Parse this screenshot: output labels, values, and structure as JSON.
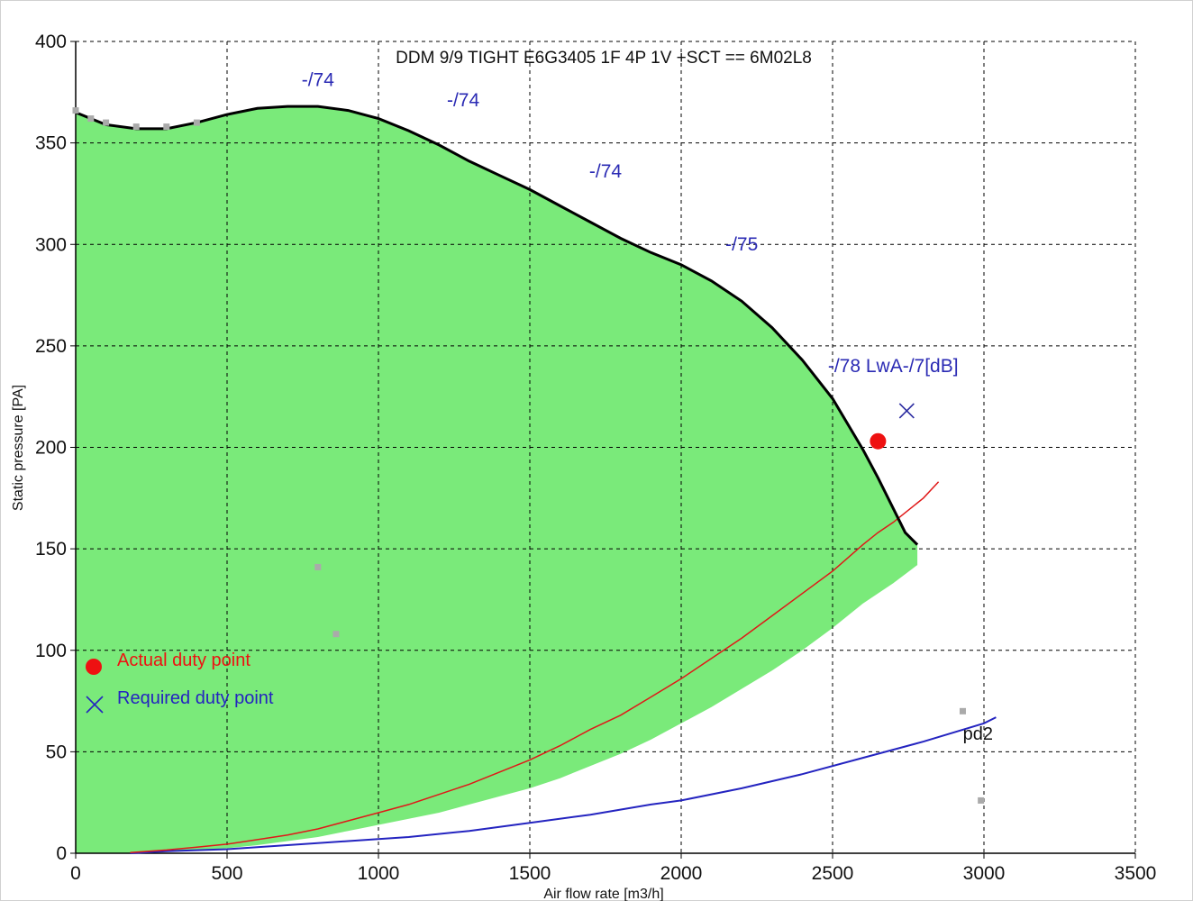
{
  "chart_data": {
    "type": "line",
    "title": "DDM 9/9 TIGHT E6G3405 1F 4P 1V +SCT == 6M02L8",
    "xlabel": "Air flow rate [m3/h]",
    "ylabel": "Static pressure [PA]",
    "xlim": [
      0,
      3500
    ],
    "ylim": [
      0,
      400
    ],
    "x_ticks": [
      "0",
      "500",
      "1000",
      "1500",
      "2000",
      "2500",
      "3000",
      "3500"
    ],
    "y_ticks": [
      "0",
      "50",
      "100",
      "150",
      "200",
      "250",
      "300",
      "350",
      "400"
    ],
    "x_tick_values": [
      0,
      500,
      1000,
      1500,
      2000,
      2500,
      3000,
      3500
    ],
    "y_tick_values": [
      0,
      50,
      100,
      150,
      200,
      250,
      300,
      350,
      400
    ],
    "grid": true,
    "colors": {
      "region": "#7aea7a",
      "fan_curve": "#000000",
      "system_curve": "#e01818",
      "pd_curve": "#2424c0",
      "duty_point": "#ee1111",
      "required_point": "#2a2aa0",
      "sound_label": "#2b2bb4",
      "extrapolated": "#aaaaaa"
    },
    "operating_region": {
      "upper": [
        [
          0,
          365
        ],
        [
          50,
          362
        ],
        [
          100,
          359
        ],
        [
          200,
          357
        ],
        [
          300,
          357
        ],
        [
          400,
          360
        ],
        [
          500,
          364
        ],
        [
          600,
          367
        ],
        [
          700,
          368
        ],
        [
          800,
          368
        ],
        [
          900,
          366
        ],
        [
          1000,
          362
        ],
        [
          1100,
          356
        ],
        [
          1200,
          349
        ],
        [
          1300,
          341
        ],
        [
          1400,
          334
        ],
        [
          1500,
          327
        ],
        [
          1600,
          319
        ],
        [
          1700,
          311
        ],
        [
          1800,
          303
        ],
        [
          1900,
          296
        ],
        [
          2000,
          290
        ],
        [
          2100,
          282
        ],
        [
          2200,
          272
        ],
        [
          2300,
          259
        ],
        [
          2400,
          243
        ],
        [
          2500,
          224
        ],
        [
          2600,
          199
        ],
        [
          2650,
          185
        ],
        [
          2700,
          170
        ],
        [
          2740,
          158
        ],
        [
          2780,
          152
        ]
      ],
      "lower": [
        [
          2780,
          142
        ],
        [
          2700,
          133
        ],
        [
          2600,
          123
        ],
        [
          2500,
          111
        ],
        [
          2400,
          100
        ],
        [
          2300,
          90
        ],
        [
          2200,
          81
        ],
        [
          2100,
          72
        ],
        [
          2000,
          64
        ],
        [
          1900,
          56
        ],
        [
          1800,
          49
        ],
        [
          1700,
          43
        ],
        [
          1600,
          37
        ],
        [
          1500,
          32
        ],
        [
          1400,
          28
        ],
        [
          1300,
          24
        ],
        [
          1200,
          20
        ],
        [
          1100,
          17
        ],
        [
          1000,
          14
        ],
        [
          900,
          11
        ],
        [
          800,
          8
        ],
        [
          700,
          6
        ],
        [
          600,
          4
        ],
        [
          500,
          2.5
        ],
        [
          400,
          1.5
        ],
        [
          300,
          0.8
        ],
        [
          200,
          0.3
        ],
        [
          150,
          0
        ],
        [
          0,
          0
        ]
      ]
    },
    "series": [
      {
        "name": "fan curve",
        "points": [
          [
            0,
            365
          ],
          [
            50,
            362
          ],
          [
            100,
            359
          ],
          [
            200,
            357
          ],
          [
            300,
            357
          ],
          [
            400,
            360
          ],
          [
            500,
            364
          ],
          [
            600,
            367
          ],
          [
            700,
            368
          ],
          [
            800,
            368
          ],
          [
            900,
            366
          ],
          [
            1000,
            362
          ],
          [
            1100,
            356
          ],
          [
            1200,
            349
          ],
          [
            1300,
            341
          ],
          [
            1400,
            334
          ],
          [
            1500,
            327
          ],
          [
            1600,
            319
          ],
          [
            1700,
            311
          ],
          [
            1800,
            303
          ],
          [
            1900,
            296
          ],
          [
            2000,
            290
          ],
          [
            2100,
            282
          ],
          [
            2200,
            272
          ],
          [
            2300,
            259
          ],
          [
            2400,
            243
          ],
          [
            2500,
            224
          ],
          [
            2600,
            199
          ],
          [
            2650,
            185
          ],
          [
            2700,
            170
          ],
          [
            2740,
            158
          ],
          [
            2780,
            152
          ]
        ]
      },
      {
        "name": "system curve",
        "points": [
          [
            180,
            0.3
          ],
          [
            300,
            1.6
          ],
          [
            400,
            3
          ],
          [
            500,
            4.5
          ],
          [
            600,
            6.7
          ],
          [
            700,
            9
          ],
          [
            800,
            12
          ],
          [
            900,
            16
          ],
          [
            1000,
            20
          ],
          [
            1100,
            24
          ],
          [
            1200,
            29
          ],
          [
            1300,
            34
          ],
          [
            1400,
            40
          ],
          [
            1500,
            46
          ],
          [
            1600,
            53
          ],
          [
            1700,
            61
          ],
          [
            1800,
            68
          ],
          [
            1900,
            77
          ],
          [
            2000,
            86
          ],
          [
            2100,
            96
          ],
          [
            2200,
            106
          ],
          [
            2300,
            117
          ],
          [
            2400,
            128
          ],
          [
            2500,
            139
          ],
          [
            2600,
            152
          ],
          [
            2650,
            158
          ],
          [
            2700,
            163
          ],
          [
            2800,
            175
          ],
          [
            2850,
            183
          ]
        ]
      },
      {
        "name": "pd2",
        "points": [
          [
            180,
            0
          ],
          [
            300,
            1
          ],
          [
            500,
            2
          ],
          [
            700,
            4
          ],
          [
            900,
            6
          ],
          [
            1000,
            7
          ],
          [
            1100,
            8
          ],
          [
            1300,
            11
          ],
          [
            1500,
            15
          ],
          [
            1700,
            19
          ],
          [
            1900,
            24
          ],
          [
            2000,
            26
          ],
          [
            2200,
            32
          ],
          [
            2400,
            39
          ],
          [
            2600,
            47
          ],
          [
            2800,
            55
          ],
          [
            3000,
            64
          ],
          [
            3040,
            67
          ]
        ]
      }
    ],
    "extrapolated_points": [
      [
        0,
        366
      ],
      [
        50,
        362
      ],
      [
        100,
        360
      ],
      [
        200,
        358
      ],
      [
        300,
        358
      ],
      [
        400,
        360
      ],
      [
        800,
        141
      ],
      [
        860,
        108
      ],
      [
        2930,
        70
      ],
      [
        2990,
        26
      ]
    ],
    "duty_point": {
      "x": 2650,
      "y": 203
    },
    "required_point": {
      "x": 2745,
      "y": 218
    },
    "sound_labels": [
      {
        "text": "-/74",
        "x": 800,
        "y": 378
      },
      {
        "text": "-/74",
        "x": 1280,
        "y": 368
      },
      {
        "text": "-/74",
        "x": 1750,
        "y": 333
      },
      {
        "text": "-/75",
        "x": 2200,
        "y": 297
      },
      {
        "text": "-/78 LwA-/7[dB]",
        "x": 2700,
        "y": 237
      }
    ],
    "pd_label": {
      "text": "pd2",
      "x": 2980,
      "y": 56
    },
    "legend": {
      "placement": "lower-left",
      "actual": "Actual duty point",
      "required": "Required duty point"
    }
  }
}
